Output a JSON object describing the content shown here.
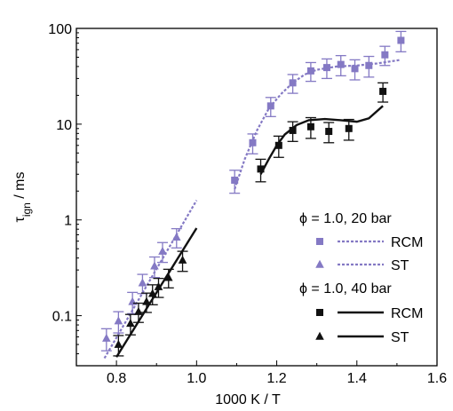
{
  "chart_data": {
    "type": "scatter",
    "title": "",
    "xlabel": "1000 K / T",
    "ylabel_main": "τ",
    "ylabel_sub": "ign",
    "ylabel_unit": " / ms",
    "x_range": [
      0.7,
      1.6
    ],
    "y_range": [
      0.03,
      100
    ],
    "y_scale": "log",
    "grid": false,
    "legend_position": "bottom-right",
    "x_ticks": [
      0.8,
      1.0,
      1.2,
      1.4,
      1.6
    ],
    "x_tick_labels": [
      "0.8",
      "1.0",
      "1.2",
      "1.4",
      "1.6"
    ],
    "y_ticks": [
      0.1,
      1,
      10,
      100
    ],
    "y_tick_labels": [
      "0.1",
      "1",
      "10",
      "100"
    ],
    "legend": {
      "group1_title": "ϕ = 1.0, 20 bar",
      "group2_title": "ϕ = 1.0, 40 bar",
      "rcm_label": "RCM",
      "st_label": "ST"
    },
    "series": [
      {
        "name": "RCM",
        "group": "ϕ = 1.0, 20 bar",
        "color": "#8479c4",
        "marker": "square",
        "points": [
          [
            1.095,
            2.6
          ],
          [
            1.14,
            6.4
          ],
          [
            1.185,
            15.5
          ],
          [
            1.24,
            27
          ],
          [
            1.285,
            36
          ],
          [
            1.325,
            39
          ],
          [
            1.36,
            42
          ],
          [
            1.395,
            38
          ],
          [
            1.43,
            41
          ],
          [
            1.47,
            53
          ],
          [
            1.51,
            75
          ]
        ],
        "errors": [
          [
            0.7,
            0.7
          ],
          [
            1.5,
            1.5
          ],
          [
            3.5,
            3.5
          ],
          [
            6,
            6
          ],
          [
            8,
            8
          ],
          [
            9,
            9
          ],
          [
            10,
            10
          ],
          [
            9,
            9
          ],
          [
            10,
            10
          ],
          [
            12,
            12
          ],
          [
            18,
            18
          ]
        ]
      },
      {
        "name": "ST",
        "group": "ϕ = 1.0, 20 bar",
        "color": "#8479c4",
        "marker": "triangle",
        "points": [
          [
            0.775,
            0.058
          ],
          [
            0.805,
            0.088
          ],
          [
            0.84,
            0.14
          ],
          [
            0.865,
            0.22
          ],
          [
            0.895,
            0.33
          ],
          [
            0.915,
            0.47
          ],
          [
            0.95,
            0.66
          ]
        ],
        "errors": [
          [
            0.015,
            0.015
          ],
          [
            0.022,
            0.022
          ],
          [
            0.035,
            0.035
          ],
          [
            0.05,
            0.05
          ],
          [
            0.08,
            0.08
          ],
          [
            0.11,
            0.11
          ],
          [
            0.15,
            0.15
          ]
        ]
      },
      {
        "name": "RCM",
        "group": "ϕ = 1.0, 40 bar",
        "color": "#111111",
        "marker": "square",
        "points": [
          [
            1.16,
            3.4
          ],
          [
            1.205,
            6.0
          ],
          [
            1.24,
            8.6
          ],
          [
            1.285,
            9.4
          ],
          [
            1.33,
            8.4
          ],
          [
            1.38,
            9.0
          ],
          [
            1.465,
            22
          ]
        ],
        "errors": [
          [
            0.9,
            0.9
          ],
          [
            1.5,
            1.5
          ],
          [
            2.0,
            2.0
          ],
          [
            2.3,
            2.3
          ],
          [
            2.0,
            2.0
          ],
          [
            2.2,
            2.2
          ],
          [
            5,
            5
          ]
        ]
      },
      {
        "name": "ST",
        "group": "ϕ = 1.0, 40 bar",
        "color": "#111111",
        "marker": "triangle",
        "points": [
          [
            0.805,
            0.05
          ],
          [
            0.835,
            0.083
          ],
          [
            0.855,
            0.11
          ],
          [
            0.875,
            0.14
          ],
          [
            0.89,
            0.17
          ],
          [
            0.905,
            0.2
          ],
          [
            0.93,
            0.25
          ],
          [
            0.965,
            0.38
          ]
        ],
        "errors": [
          [
            0.012,
            0.012
          ],
          [
            0.02,
            0.02
          ],
          [
            0.025,
            0.025
          ],
          [
            0.032,
            0.032
          ],
          [
            0.04,
            0.04
          ],
          [
            0.045,
            0.045
          ],
          [
            0.055,
            0.055
          ],
          [
            0.09,
            0.09
          ]
        ]
      }
    ],
    "model_lines": [
      {
        "group": "ϕ = 1.0, 20 bar",
        "label": "RCM",
        "color": "#8479c4",
        "dash": "dotted",
        "points": [
          [
            1.095,
            2.1
          ],
          [
            1.12,
            4.3
          ],
          [
            1.15,
            8.5
          ],
          [
            1.18,
            14.5
          ],
          [
            1.21,
            20.5
          ],
          [
            1.24,
            27
          ],
          [
            1.27,
            33
          ],
          [
            1.3,
            37
          ],
          [
            1.35,
            40
          ],
          [
            1.4,
            41
          ],
          [
            1.45,
            43
          ],
          [
            1.51,
            47
          ]
        ]
      },
      {
        "group": "ϕ = 1.0, 20 bar",
        "label": "ST",
        "color": "#8479c4",
        "dash": "dotted",
        "points": [
          [
            0.77,
            0.036
          ],
          [
            1.0,
            1.6
          ]
        ]
      },
      {
        "group": "ϕ = 1.0, 40 bar",
        "label": "RCM",
        "color": "#111111",
        "dash": "solid",
        "points": [
          [
            1.16,
            3.0
          ],
          [
            1.18,
            4.3
          ],
          [
            1.2,
            6.0
          ],
          [
            1.22,
            7.8
          ],
          [
            1.25,
            9.8
          ],
          [
            1.28,
            11.0
          ],
          [
            1.32,
            11.3
          ],
          [
            1.36,
            11.0
          ],
          [
            1.4,
            10.6
          ],
          [
            1.43,
            11.5
          ],
          [
            1.465,
            15.5
          ]
        ]
      },
      {
        "group": "ϕ = 1.0, 40 bar",
        "label": "ST",
        "color": "#111111",
        "dash": "solid",
        "points": [
          [
            0.8,
            0.037
          ],
          [
            1.0,
            0.82
          ]
        ]
      }
    ]
  }
}
